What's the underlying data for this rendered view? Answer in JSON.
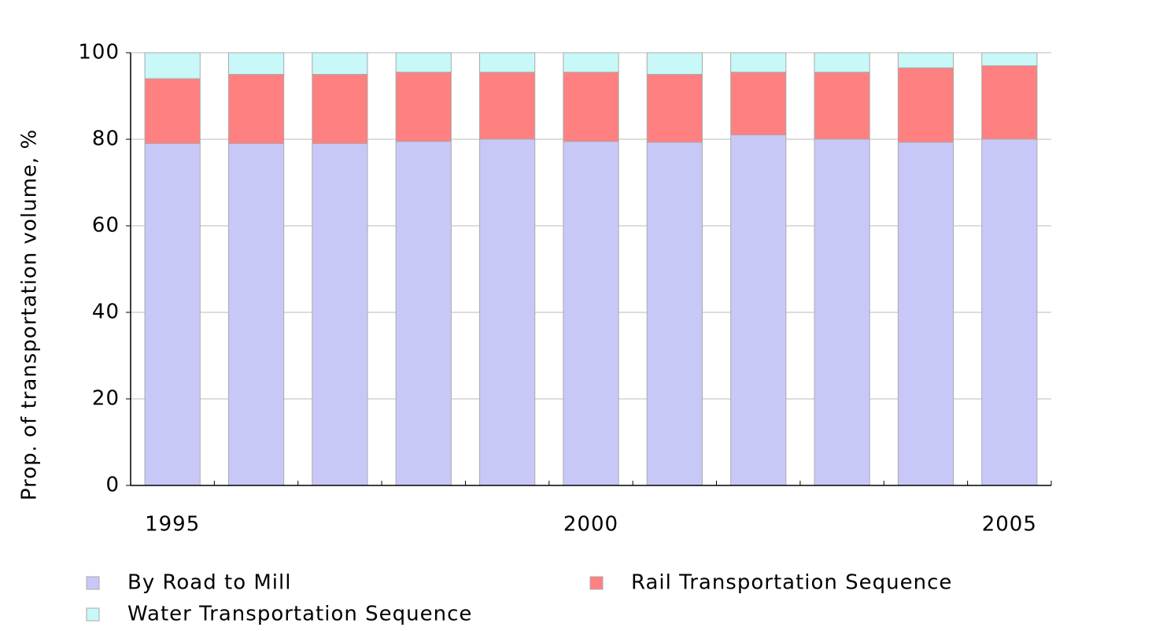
{
  "chart_data": {
    "type": "stacked-bar",
    "y_label": "Prop. of transportation volume, %",
    "categories": [
      "1995",
      null,
      null,
      null,
      null,
      "2000",
      null,
      null,
      null,
      null,
      "2005"
    ],
    "series": [
      {
        "name": "By Road to Mill",
        "color": "#c8c8f8",
        "values": [
          79,
          79,
          79,
          79.5,
          80,
          79.5,
          79.3,
          81,
          80,
          79.3,
          80
        ]
      },
      {
        "name": "Rail Transportation Sequence",
        "color": "#ff8080",
        "values": [
          15,
          16,
          16,
          16,
          15.5,
          16,
          15.7,
          14.5,
          15.5,
          17.2,
          17
        ]
      },
      {
        "name": "Water Transportation Sequence",
        "color": "#c8f8f8",
        "values": [
          6,
          5,
          5,
          4.5,
          4.5,
          4.5,
          5,
          4.5,
          4.5,
          3.5,
          3
        ]
      }
    ],
    "ylim": [
      0,
      100
    ],
    "yticks": [
      0,
      20,
      40,
      60,
      80,
      100
    ],
    "grid": true
  }
}
